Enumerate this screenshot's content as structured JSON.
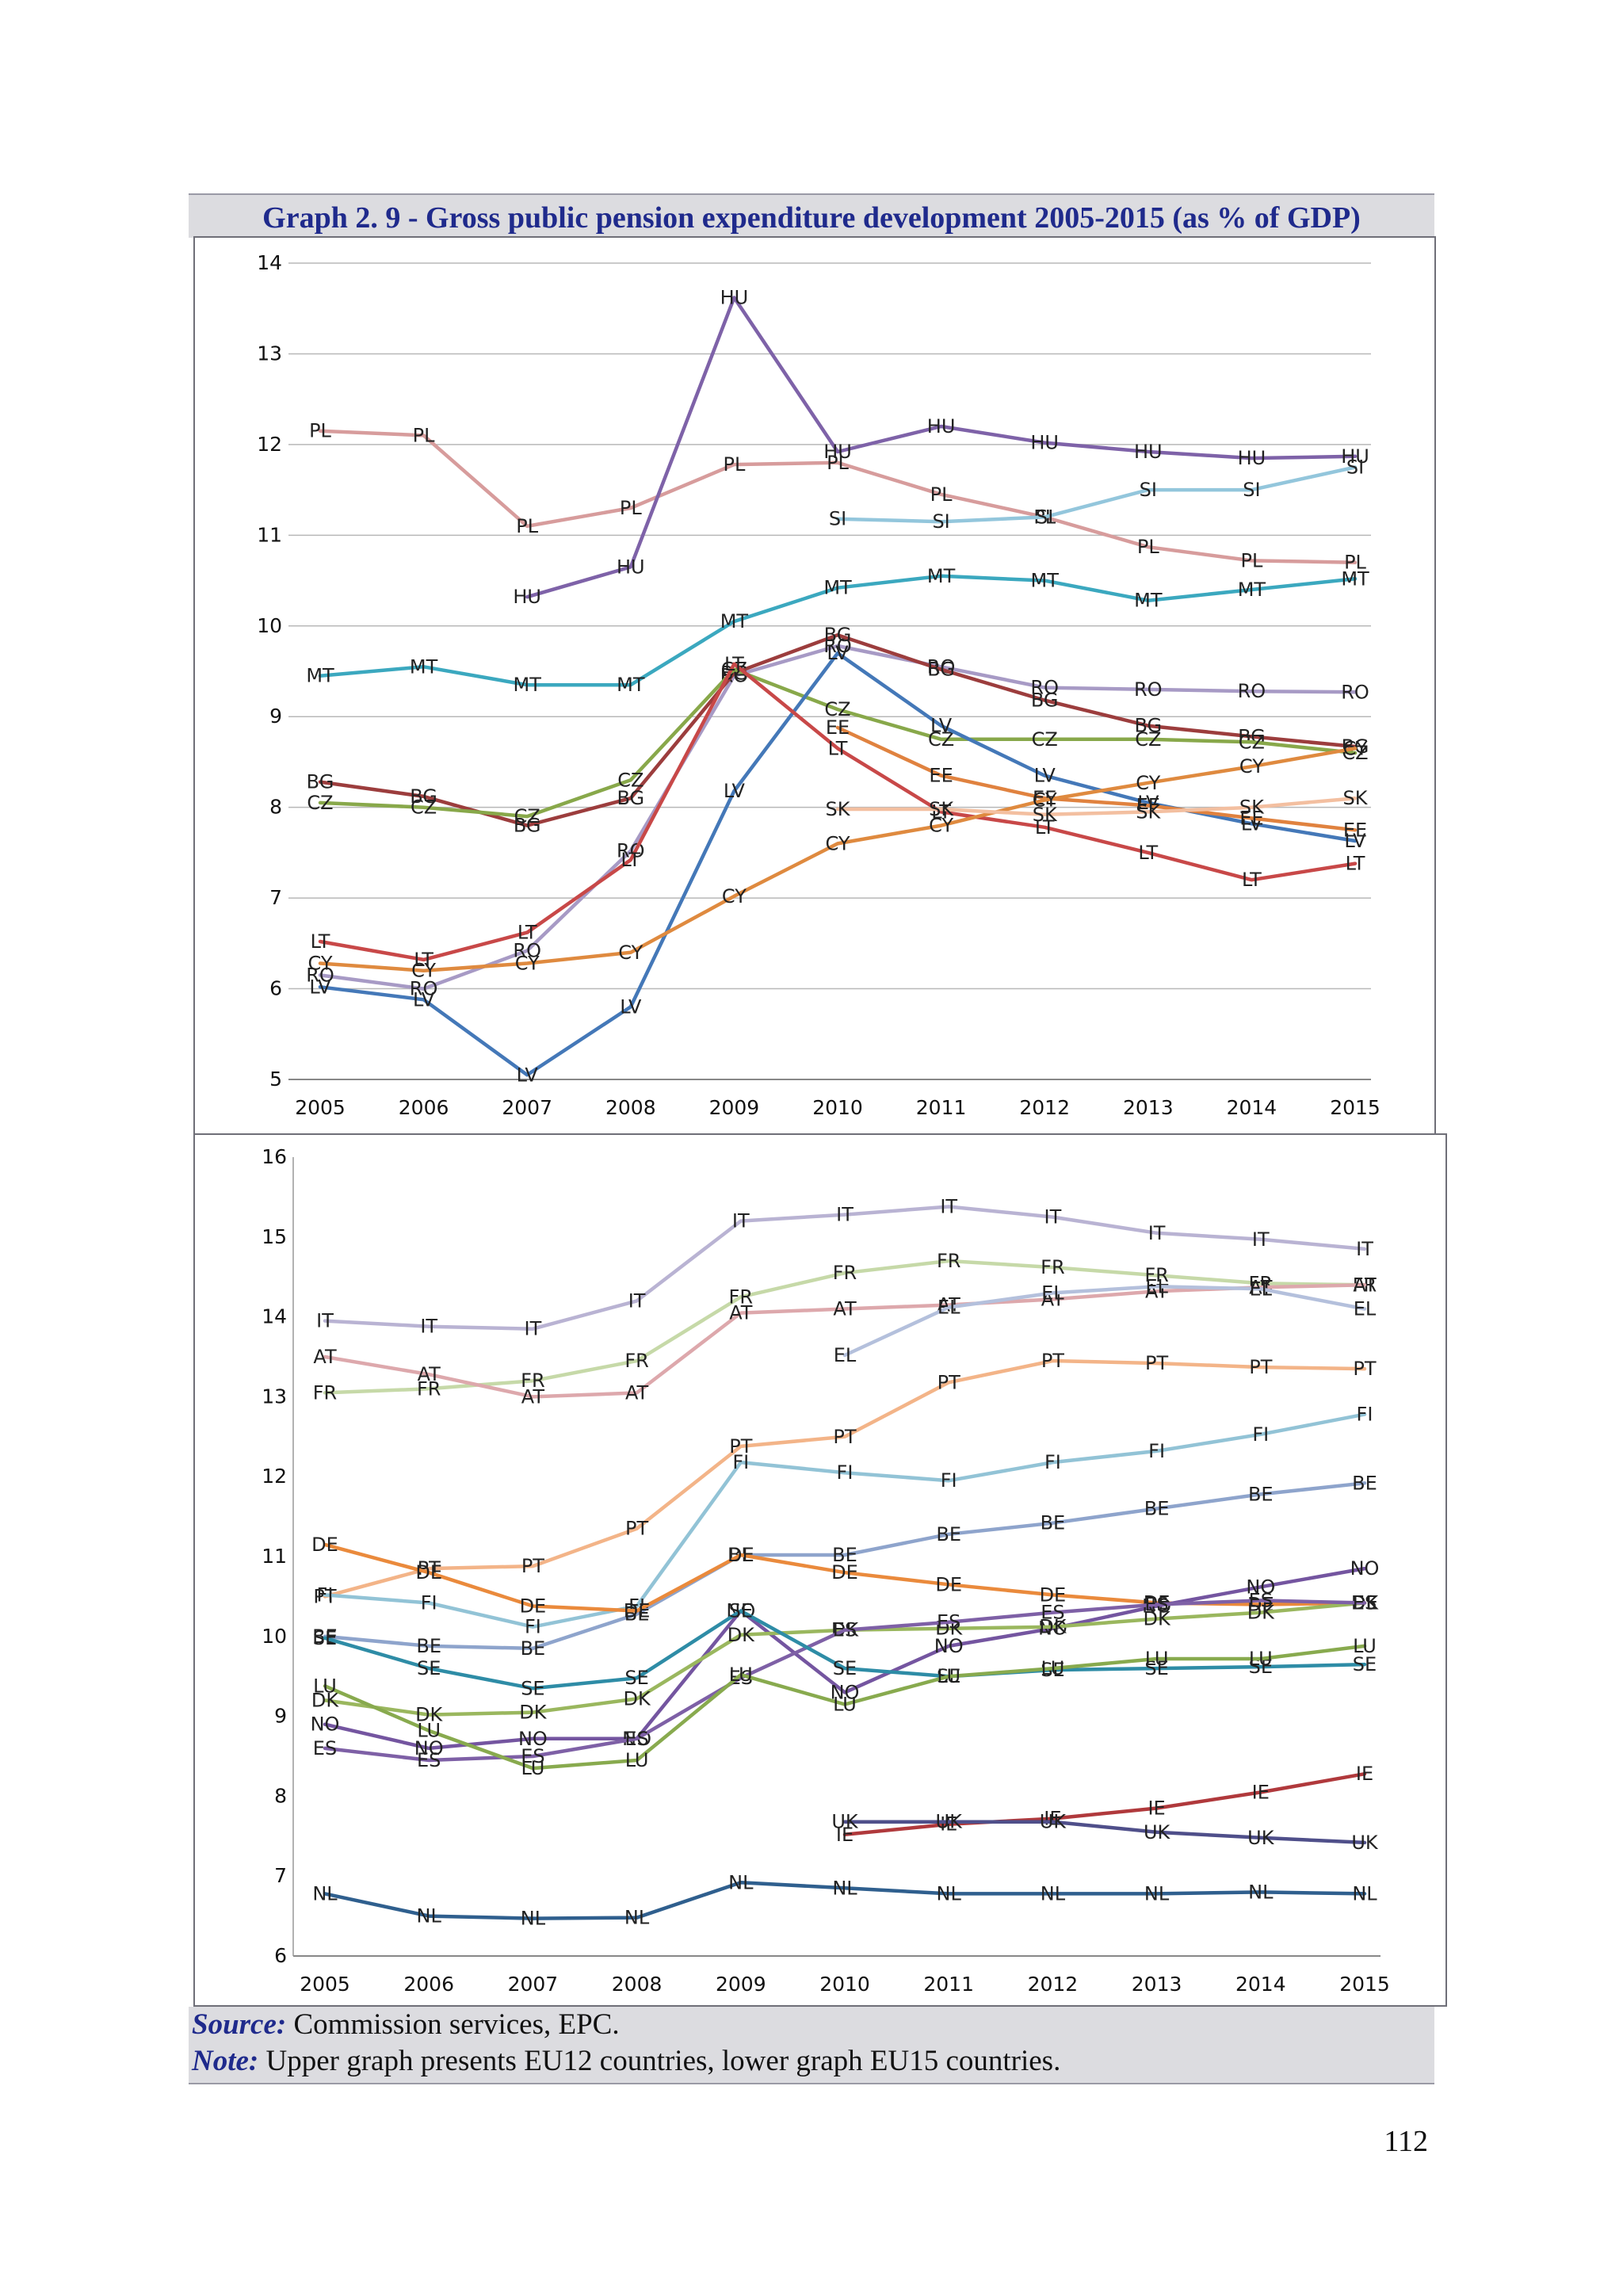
{
  "title": "Graph 2. 9 - Gross public pension expenditure development 2005-2015 (as % of GDP)",
  "source_label": "Source:",
  "source_text": "Commission services, EPC.",
  "note_label": "Note:",
  "note_text": "Upper graph presents EU12 countries, lower graph EU15 countries.",
  "page_number": "112",
  "chart_data": [
    {
      "type": "line",
      "x": [
        "2005",
        "2006",
        "2007",
        "2008",
        "2009",
        "2010",
        "2011",
        "2012",
        "2013",
        "2014",
        "2015"
      ],
      "ylim": [
        5,
        14
      ],
      "yticks": [
        5,
        6,
        7,
        8,
        9,
        10,
        11,
        12,
        13,
        14
      ],
      "grid": true,
      "series": [
        {
          "name": "PL",
          "color": "#d79c9c",
          "values": [
            12.15,
            12.1,
            11.1,
            11.3,
            11.78,
            11.8,
            11.45,
            11.2,
            10.87,
            10.72,
            10.7
          ]
        },
        {
          "name": "HU",
          "color": "#7e62a8",
          "values": [
            null,
            null,
            10.32,
            10.65,
            13.62,
            11.92,
            12.2,
            12.02,
            11.92,
            11.85,
            11.87
          ]
        },
        {
          "name": "SI",
          "color": "#93c6dc",
          "values": [
            null,
            null,
            null,
            null,
            null,
            11.18,
            11.15,
            11.2,
            11.5,
            11.5,
            11.75
          ]
        },
        {
          "name": "MT",
          "color": "#3ba8bf",
          "values": [
            9.45,
            9.55,
            9.35,
            9.35,
            10.05,
            10.42,
            10.55,
            10.5,
            10.28,
            10.4,
            10.52
          ]
        },
        {
          "name": "RO",
          "color": "#a79ac5",
          "values": [
            6.15,
            6.0,
            6.42,
            7.52,
            9.45,
            9.78,
            9.55,
            9.32,
            9.3,
            9.28,
            9.27
          ]
        },
        {
          "name": "BG",
          "color": "#9c3d3d",
          "values": [
            8.28,
            8.12,
            7.8,
            8.1,
            9.48,
            9.9,
            9.52,
            9.18,
            8.9,
            8.78,
            8.67
          ]
        },
        {
          "name": "CZ",
          "color": "#88a84a",
          "values": [
            8.05,
            8.0,
            7.9,
            8.3,
            9.52,
            9.08,
            8.75,
            8.75,
            8.75,
            8.72,
            8.6
          ]
        },
        {
          "name": "LV",
          "color": "#4478b8",
          "values": [
            6.02,
            5.88,
            5.05,
            5.8,
            8.18,
            9.7,
            8.9,
            8.35,
            8.05,
            7.82,
            7.63
          ]
        },
        {
          "name": "EE",
          "color": "#e0823f",
          "values": [
            null,
            null,
            null,
            null,
            null,
            8.88,
            8.35,
            8.1,
            8.02,
            7.88,
            7.75
          ]
        },
        {
          "name": "LT",
          "color": "#c84848",
          "values": [
            6.52,
            6.32,
            6.62,
            7.42,
            9.58,
            8.65,
            7.95,
            7.78,
            7.5,
            7.2,
            7.38
          ]
        },
        {
          "name": "CY",
          "color": "#df8a3f",
          "values": [
            6.28,
            6.2,
            6.28,
            6.4,
            7.02,
            7.6,
            7.8,
            8.08,
            8.27,
            8.45,
            8.65
          ]
        },
        {
          "name": "SK",
          "color": "#f3bfa0",
          "values": [
            null,
            null,
            null,
            null,
            null,
            7.98,
            7.98,
            7.92,
            7.95,
            8.0,
            8.1
          ]
        }
      ]
    },
    {
      "type": "line",
      "x": [
        "2005",
        "2006",
        "2007",
        "2008",
        "2009",
        "2010",
        "2011",
        "2012",
        "2013",
        "2014",
        "2015"
      ],
      "ylim": [
        6,
        16
      ],
      "yticks": [
        6,
        7,
        8,
        9,
        10,
        11,
        12,
        13,
        14,
        15,
        16
      ],
      "grid": false,
      "series": [
        {
          "name": "IT",
          "color": "#b9b3d3",
          "values": [
            13.95,
            13.88,
            13.85,
            14.2,
            15.2,
            15.28,
            15.38,
            15.25,
            15.05,
            14.97,
            14.85
          ]
        },
        {
          "name": "FR",
          "color": "#c6d9a8",
          "values": [
            13.05,
            13.1,
            13.2,
            13.45,
            14.25,
            14.55,
            14.7,
            14.62,
            14.52,
            14.42,
            14.4
          ]
        },
        {
          "name": "AT",
          "color": "#dda8ac",
          "values": [
            13.5,
            13.28,
            13.0,
            13.05,
            14.05,
            14.1,
            14.15,
            14.22,
            14.32,
            14.37,
            14.4
          ]
        },
        {
          "name": "EL",
          "color": "#b4c0dc",
          "values": [
            null,
            null,
            null,
            null,
            null,
            13.52,
            14.12,
            14.3,
            14.38,
            14.35,
            14.1
          ]
        },
        {
          "name": "PT",
          "color": "#f3b488",
          "values": [
            10.5,
            10.85,
            10.88,
            11.35,
            12.38,
            12.5,
            13.18,
            13.45,
            13.42,
            13.37,
            13.35
          ]
        },
        {
          "name": "FI",
          "color": "#92c3d6",
          "values": [
            10.52,
            10.42,
            10.12,
            10.38,
            12.18,
            12.05,
            11.95,
            12.18,
            12.32,
            12.53,
            12.78
          ]
        },
        {
          "name": "BE",
          "color": "#8ea4cc",
          "values": [
            10.0,
            9.88,
            9.85,
            10.28,
            11.02,
            11.02,
            11.28,
            11.42,
            11.6,
            11.78,
            11.92
          ]
        },
        {
          "name": "DE",
          "color": "#ea8a3c",
          "values": [
            11.15,
            10.8,
            10.38,
            10.32,
            11.02,
            10.8,
            10.65,
            10.52,
            10.42,
            10.4,
            10.42
          ]
        },
        {
          "name": "NO",
          "color": "#7455a0",
          "values": [
            8.9,
            8.6,
            8.72,
            8.72,
            10.32,
            9.3,
            9.88,
            10.1,
            10.38,
            10.62,
            10.85
          ]
        },
        {
          "name": "DK",
          "color": "#9ab75e",
          "values": [
            9.2,
            9.02,
            9.05,
            9.22,
            10.02,
            10.08,
            10.1,
            10.12,
            10.22,
            10.3,
            10.42
          ]
        },
        {
          "name": "ES",
          "color": "#7e60a6",
          "values": [
            8.6,
            8.45,
            8.5,
            8.72,
            9.48,
            10.08,
            10.18,
            10.3,
            10.4,
            10.45,
            10.42
          ]
        },
        {
          "name": "SE",
          "color": "#2e8ca6",
          "values": [
            9.98,
            9.6,
            9.35,
            9.48,
            10.32,
            9.6,
            9.5,
            9.58,
            9.6,
            9.62,
            9.65
          ]
        },
        {
          "name": "LU",
          "color": "#88aa4e",
          "values": [
            9.38,
            8.82,
            8.35,
            8.45,
            9.52,
            9.15,
            9.5,
            9.6,
            9.72,
            9.72,
            9.88
          ]
        },
        {
          "name": "IE",
          "color": "#b0393c",
          "values": [
            null,
            null,
            null,
            null,
            null,
            7.52,
            7.65,
            7.72,
            7.85,
            8.05,
            8.28
          ]
        },
        {
          "name": "UK",
          "color": "#4f4f8a",
          "values": [
            null,
            null,
            null,
            null,
            null,
            7.68,
            7.68,
            7.68,
            7.55,
            7.48,
            7.42
          ]
        },
        {
          "name": "NL",
          "color": "#2f5f8e",
          "values": [
            6.78,
            6.5,
            6.47,
            6.48,
            6.92,
            6.85,
            6.78,
            6.78,
            6.78,
            6.8,
            6.78
          ]
        }
      ]
    }
  ]
}
